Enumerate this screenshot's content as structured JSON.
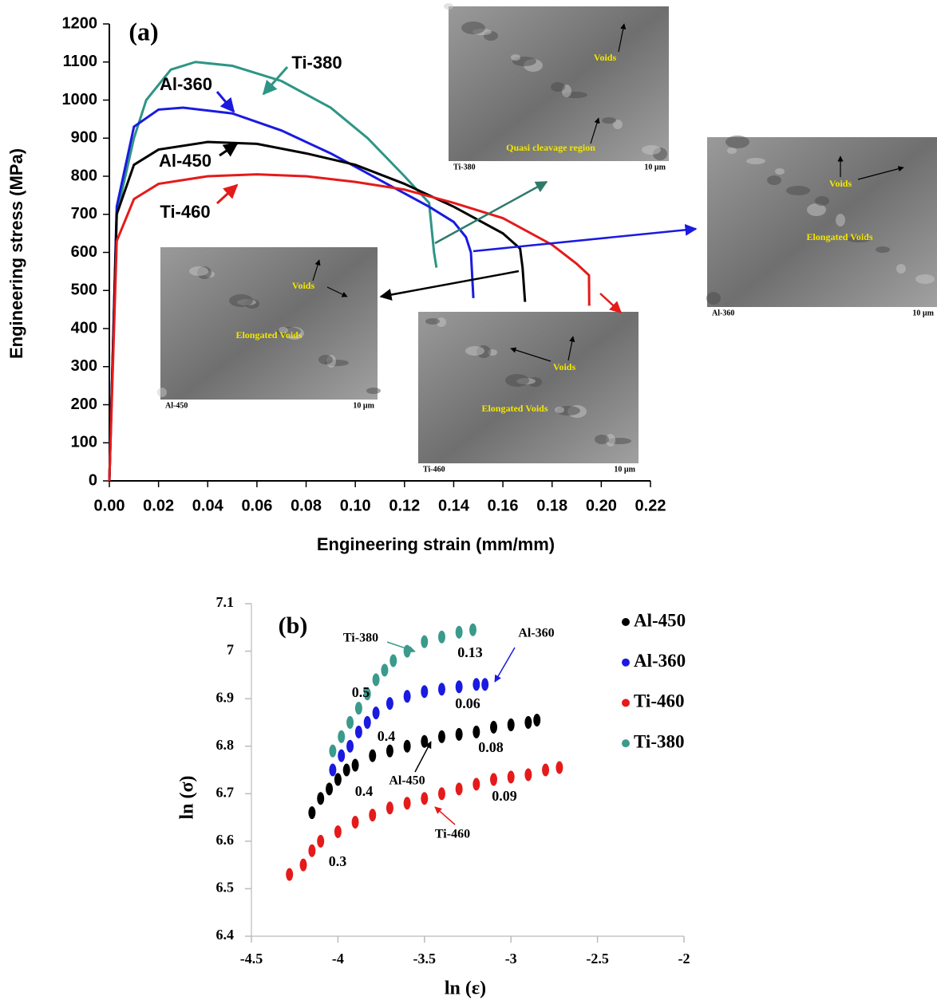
{
  "chart_data": [
    {
      "type": "line",
      "annotations": [
        "(a)"
      ],
      "xlabel": "Engineering strain (mm/mm)",
      "ylabel": "Engineering stress (MPa)",
      "xlim": [
        0,
        0.22
      ],
      "ylim": [
        0,
        1200
      ],
      "xticks": [
        {
          "value": 0,
          "label": "0.00"
        },
        {
          "value": 0.02,
          "label": "0.02"
        },
        {
          "value": 0.04,
          "label": "0.04"
        },
        {
          "value": 0.06,
          "label": "0.06"
        },
        {
          "value": 0.08,
          "label": "0.08"
        },
        {
          "value": 0.1,
          "label": "0.10"
        },
        {
          "value": 0.12,
          "label": "0.12"
        },
        {
          "value": 0.14,
          "label": "0.14"
        },
        {
          "value": 0.16,
          "label": "0.16"
        },
        {
          "value": 0.18,
          "label": "0.18"
        },
        {
          "value": 0.2,
          "label": "0.20"
        },
        {
          "value": 0.22,
          "label": "0.22"
        }
      ],
      "yticks": [
        0,
        100,
        200,
        300,
        400,
        500,
        600,
        700,
        800,
        900,
        1000,
        1100,
        1200
      ],
      "series": [
        {
          "name": "Ti-380",
          "color": "#2e9585",
          "x": [
            0,
            0.003,
            0.01,
            0.015,
            0.025,
            0.035,
            0.05,
            0.07,
            0.09,
            0.105,
            0.12,
            0.13,
            0.132,
            0.133
          ],
          "values": [
            0,
            700,
            900,
            1000,
            1080,
            1100,
            1090,
            1050,
            980,
            900,
            800,
            730,
            600,
            560
          ]
        },
        {
          "name": "Al-360",
          "color": "#1a1ae0",
          "x": [
            0,
            0.003,
            0.01,
            0.02,
            0.03,
            0.05,
            0.07,
            0.09,
            0.11,
            0.13,
            0.14,
            0.145,
            0.147,
            0.148
          ],
          "values": [
            0,
            720,
            930,
            975,
            980,
            965,
            920,
            860,
            790,
            720,
            680,
            640,
            600,
            480
          ]
        },
        {
          "name": "Al-450",
          "color": "#000000",
          "x": [
            0,
            0.003,
            0.01,
            0.02,
            0.04,
            0.06,
            0.08,
            0.1,
            0.12,
            0.14,
            0.16,
            0.167,
            0.168,
            0.169
          ],
          "values": [
            0,
            700,
            830,
            870,
            890,
            885,
            860,
            830,
            780,
            720,
            650,
            610,
            560,
            470
          ]
        },
        {
          "name": "Ti-460",
          "color": "#e51a1a",
          "x": [
            0,
            0.003,
            0.01,
            0.02,
            0.04,
            0.06,
            0.08,
            0.1,
            0.12,
            0.14,
            0.16,
            0.18,
            0.19,
            0.195,
            0.1951
          ],
          "values": [
            0,
            630,
            740,
            780,
            800,
            805,
            800,
            785,
            765,
            730,
            690,
            620,
            570,
            540,
            460
          ]
        }
      ],
      "insets": [
        {
          "name": "Ti-380",
          "scale": "10 µm",
          "notes": [
            "Voids",
            "Quasi cleavage region"
          ]
        },
        {
          "name": "Al-360",
          "scale": "10 µm",
          "notes": [
            "Voids",
            "Elongated Voids"
          ]
        },
        {
          "name": "Al-450",
          "scale": "10 µm",
          "notes": [
            "Voids",
            "Elongated Voids"
          ]
        },
        {
          "name": "Ti-460",
          "scale": "10 µm",
          "notes": [
            "Voids",
            "Elongated Voids"
          ]
        }
      ]
    },
    {
      "type": "scatter",
      "annotations": [
        "(b)",
        "0.13",
        "0.5",
        "0.06",
        "0.4",
        "0.08",
        "0.4",
        "0.09",
        "0.3"
      ],
      "xlabel": "ln (ε)",
      "ylabel": "ln (σ)",
      "xlim": [
        -4.5,
        -2
      ],
      "ylim": [
        6.4,
        7.1
      ],
      "xticks": [
        -4.5,
        -4,
        -3.5,
        -3,
        -2.5,
        -2
      ],
      "yticks": [
        6.4,
        6.5,
        6.6,
        6.7,
        6.8,
        6.9,
        7,
        7.1
      ],
      "legend": "right",
      "series": [
        {
          "name": "Al-450",
          "color": "#000000",
          "x": [
            -4.15,
            -4.1,
            -4.05,
            -4.0,
            -3.95,
            -3.9,
            -3.8,
            -3.7,
            -3.6,
            -3.5,
            -3.4,
            -3.3,
            -3.2,
            -3.1,
            -3.0,
            -2.9,
            -2.85
          ],
          "values": [
            6.66,
            6.69,
            6.71,
            6.73,
            6.75,
            6.76,
            6.78,
            6.79,
            6.8,
            6.81,
            6.82,
            6.825,
            6.83,
            6.84,
            6.845,
            6.85,
            6.855
          ]
        },
        {
          "name": "Al-360",
          "color": "#1a1ae0",
          "x": [
            -4.03,
            -3.98,
            -3.93,
            -3.88,
            -3.83,
            -3.78,
            -3.7,
            -3.6,
            -3.5,
            -3.4,
            -3.3,
            -3.2,
            -3.15
          ],
          "values": [
            6.75,
            6.78,
            6.8,
            6.83,
            6.85,
            6.87,
            6.89,
            6.905,
            6.915,
            6.92,
            6.925,
            6.93,
            6.93
          ]
        },
        {
          "name": "Ti-460",
          "color": "#e51a1a",
          "x": [
            -4.28,
            -4.2,
            -4.15,
            -4.1,
            -4.0,
            -3.9,
            -3.8,
            -3.7,
            -3.6,
            -3.5,
            -3.4,
            -3.3,
            -3.2,
            -3.1,
            -3.0,
            -2.9,
            -2.8,
            -2.72
          ],
          "values": [
            6.53,
            6.55,
            6.58,
            6.6,
            6.62,
            6.64,
            6.655,
            6.67,
            6.68,
            6.69,
            6.7,
            6.71,
            6.72,
            6.73,
            6.735,
            6.74,
            6.75,
            6.755
          ]
        },
        {
          "name": "Ti-380",
          "color": "#3a9a8c",
          "x": [
            -4.03,
            -3.98,
            -3.93,
            -3.88,
            -3.83,
            -3.78,
            -3.73,
            -3.68,
            -3.6,
            -3.5,
            -3.4,
            -3.3,
            -3.22
          ],
          "values": [
            6.79,
            6.82,
            6.85,
            6.88,
            6.91,
            6.94,
            6.96,
            6.98,
            7.0,
            7.02,
            7.03,
            7.04,
            7.045
          ]
        }
      ]
    }
  ]
}
